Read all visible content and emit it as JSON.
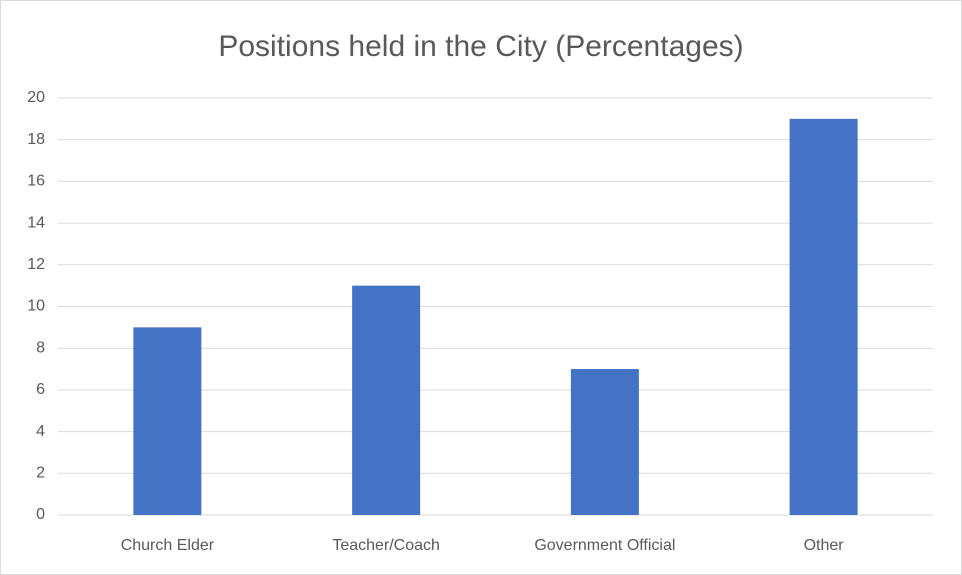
{
  "chart_data": {
    "type": "bar",
    "title": "Positions held in the City (Percentages)",
    "categories": [
      "Church Elder",
      "Teacher/Coach",
      "Government Official",
      "Other"
    ],
    "values": [
      9,
      11,
      7,
      19
    ],
    "color": "#4472c4",
    "ylim": [
      0,
      20
    ],
    "yticks": [
      0,
      2,
      4,
      6,
      8,
      10,
      12,
      14,
      16,
      18,
      20
    ],
    "grid": true
  }
}
